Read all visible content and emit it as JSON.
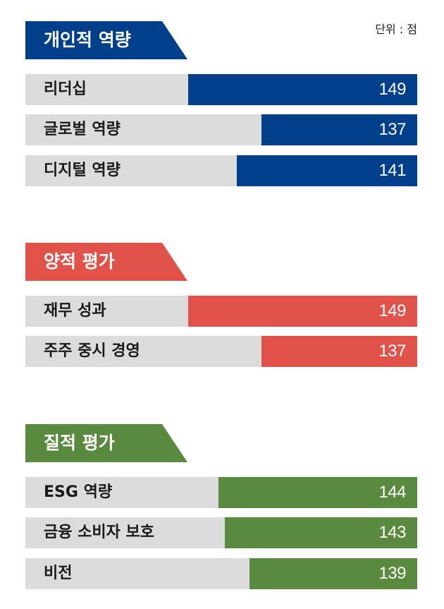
{
  "unit_label": "단위 : 점",
  "chart_data": {
    "type": "bar",
    "orientation": "horizontal",
    "unit": "점",
    "groups": [
      {
        "title": "개인적 역량",
        "color": "#003f8a",
        "items": [
          {
            "label": "리더십",
            "value": 149
          },
          {
            "label": "글로벌 역량",
            "value": 137
          },
          {
            "label": "디지털 역량",
            "value": 141
          }
        ]
      },
      {
        "title": "양적 평가",
        "color": "#e0524a",
        "items": [
          {
            "label": "재무 성과",
            "value": 149
          },
          {
            "label": "주주 중시 경영",
            "value": 137
          }
        ]
      },
      {
        "title": "질적 평가",
        "color": "#5a8a3e",
        "items": [
          {
            "label": "ESG 역량",
            "value": 144
          },
          {
            "label": "금융 소비자 보호",
            "value": 143
          },
          {
            "label": "비전",
            "value": 139
          }
        ]
      }
    ]
  }
}
